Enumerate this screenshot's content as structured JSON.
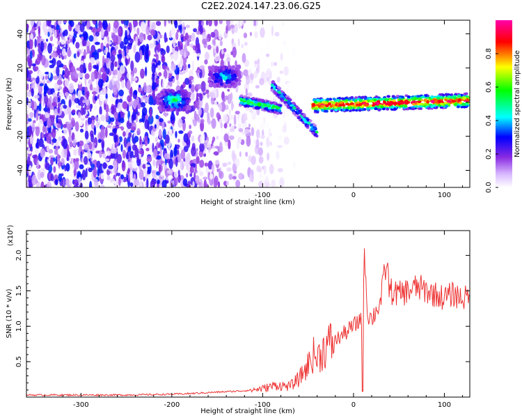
{
  "title": "C2E2.2024.147.23.06.G25",
  "chart_data": [
    {
      "type": "heatmap",
      "xlabel": "Height of straight line (km)",
      "ylabel": "Frequency (Hz)",
      "xlim": [
        -360,
        128
      ],
      "ylim": [
        -50,
        48
      ],
      "xticks": [
        -300,
        -200,
        -100,
        0,
        100
      ],
      "yticks": [
        -40,
        -20,
        0,
        20,
        40
      ],
      "colorbar": {
        "label": "Normalized spectral amplitude",
        "range": [
          0,
          1
        ],
        "ticks": [
          "0.0",
          "0.2",
          "0.4",
          "0.6",
          "0.8"
        ],
        "colors": [
          "#ffffff",
          "#d9b8ff",
          "#8a2be2",
          "#0000ff",
          "#00ffff",
          "#00ff00",
          "#ffff00",
          "#ff0000",
          "#ff00aa"
        ]
      },
      "features": [
        {
          "name": "noise field",
          "x": [
            -360,
            -120
          ],
          "y": [
            -50,
            48
          ],
          "level": 0.25
        },
        {
          "name": "blob",
          "x": -197,
          "y": 1,
          "level": 0.55
        },
        {
          "name": "blob",
          "x": -142,
          "y": 15,
          "level": 0.45
        },
        {
          "name": "streak",
          "x": [
            -125,
            -80
          ],
          "y": [
            1,
            -4
          ],
          "level": 0.6
        },
        {
          "name": "streak",
          "x": [
            -90,
            -40
          ],
          "y": [
            10,
            -18
          ],
          "level": 0.5
        },
        {
          "name": "carrier",
          "x": [
            -45,
            128
          ],
          "y": [
            -2,
            1
          ],
          "level": 0.95
        }
      ]
    },
    {
      "type": "line",
      "xlabel": "Height of straight line (km)",
      "ylabel": "SNR (10 * v/v)",
      "yscale_label": "(x10⁴)",
      "xlim": [
        -360,
        128
      ],
      "ylim": [
        0,
        2.35
      ],
      "xticks": [
        -300,
        -200,
        -100,
        0,
        100
      ],
      "yticks": [
        0.5,
        1.0,
        1.5,
        2.0
      ],
      "ytick_labels": [
        "0.5",
        "1.0",
        "1.5",
        "2.0"
      ],
      "color": "#ee3333",
      "series": [
        {
          "x": [
            -360,
            -300,
            -250,
            -200,
            -180,
            -150,
            -120,
            -100,
            -85,
            -70,
            -60,
            -50,
            -45,
            -40,
            -30,
            -20,
            -10,
            0,
            5,
            10,
            12,
            15,
            20,
            30,
            36,
            40,
            50,
            60,
            70,
            80,
            90,
            100,
            110,
            120,
            128
          ],
          "y": [
            0.03,
            0.03,
            0.03,
            0.04,
            0.05,
            0.07,
            0.09,
            0.12,
            0.17,
            0.15,
            0.26,
            0.45,
            0.6,
            0.55,
            0.72,
            0.8,
            0.9,
            1.0,
            1.05,
            1.2,
            2.2,
            1.2,
            1.1,
            1.35,
            1.9,
            1.5,
            1.45,
            1.5,
            1.55,
            1.5,
            1.45,
            1.4,
            1.45,
            1.4,
            1.4
          ]
        }
      ]
    }
  ]
}
